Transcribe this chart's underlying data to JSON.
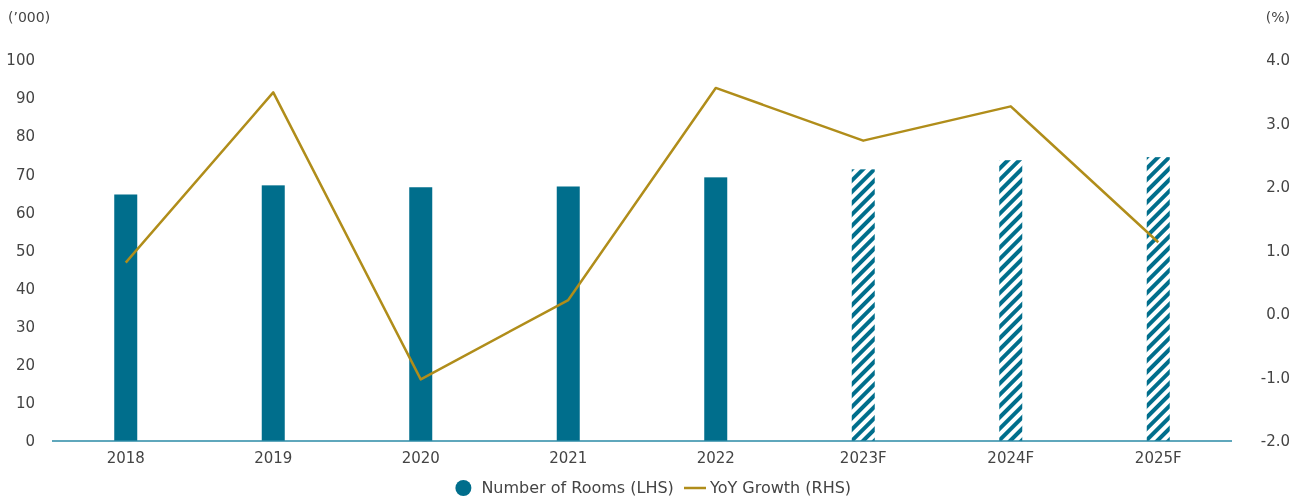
{
  "chart_data": {
    "type": "bar",
    "ylabel": "(’000)",
    "y2label": "(%)",
    "categories": [
      "2018",
      "2019",
      "2020",
      "2021",
      "2022",
      "2023F",
      "2024F",
      "2025F"
    ],
    "series": [
      {
        "name": "Number of Rooms (LHS)",
        "color": "#006e8c",
        "values": [
          64.7,
          67.1,
          66.6,
          66.8,
          69.2,
          null,
          null,
          null
        ]
      },
      {
        "color": "#006e8c",
        "line_style": "dashed",
        "values": [
          null,
          null,
          null,
          null,
          null,
          71.3,
          73.7,
          74.5
        ]
      },
      {
        "name": "YoY Growth (RHS)",
        "type": "line",
        "axis": "y2",
        "color": "#b08d1a",
        "values": [
          0.81,
          3.49,
          -1.03,
          0.22,
          3.56,
          2.73,
          3.27,
          1.13
        ]
      }
    ],
    "ylim": [
      0,
      100
    ],
    "yticks": [
      0,
      10,
      20,
      30,
      40,
      50,
      60,
      70,
      80,
      90,
      100
    ],
    "y2lim": [
      -2,
      4
    ],
    "y2ticks": [
      {
        "value": -2,
        "label": "-2.0"
      },
      {
        "value": -1,
        "label": "-1.0"
      },
      {
        "value": 0,
        "label": "0.0"
      },
      {
        "value": 1,
        "label": "1.0"
      },
      {
        "value": 2,
        "label": "2.0"
      },
      {
        "value": 3,
        "label": "3.0"
      },
      {
        "value": 4,
        "label": "4.0"
      }
    ],
    "grid": false,
    "legend": "bottom"
  }
}
